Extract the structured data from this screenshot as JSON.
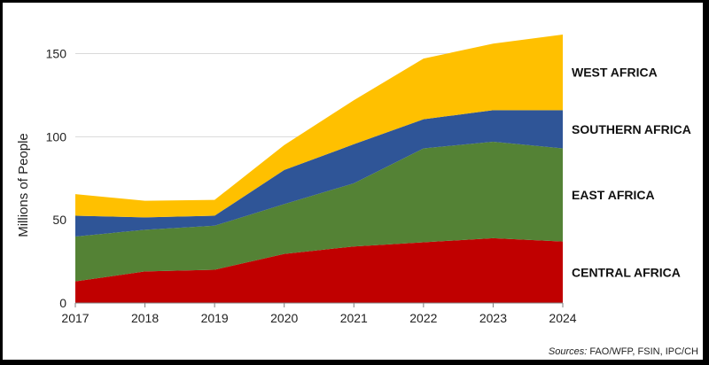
{
  "chart_data": {
    "type": "area",
    "stacked": true,
    "x": [
      2017,
      2018,
      2019,
      2020,
      2021,
      2022,
      2023,
      2024
    ],
    "xticks": [
      "2017",
      "2018",
      "2019",
      "2020",
      "2021",
      "2022",
      "2023",
      "2024"
    ],
    "yticks": [
      "0",
      "50",
      "100",
      "150"
    ],
    "ylim": [
      0,
      170
    ],
    "ylabel": "Millions of People",
    "xlabel": "",
    "grid": true,
    "series": [
      {
        "name": "CENTRAL AFRICA",
        "color": "#c00000",
        "values": [
          13,
          19,
          20,
          29.5,
          34,
          36.5,
          39,
          37
        ]
      },
      {
        "name": "EAST AFRICA",
        "color": "#548235",
        "values": [
          27,
          25,
          26.5,
          30,
          38,
          56.5,
          58,
          56
        ]
      },
      {
        "name": "SOUTHERN AFRICA",
        "color": "#2f5597",
        "values": [
          12.5,
          7.5,
          6,
          20.5,
          23.5,
          17.5,
          19,
          23
        ]
      },
      {
        "name": "WEST AFRICA",
        "color": "#ffc000",
        "values": [
          13,
          10,
          9.5,
          15,
          26.5,
          36.5,
          40,
          45.5
        ]
      }
    ]
  },
  "sources": {
    "label": "Sources:",
    "text": " FAO/WFP, FSIN, IPC/CH"
  }
}
